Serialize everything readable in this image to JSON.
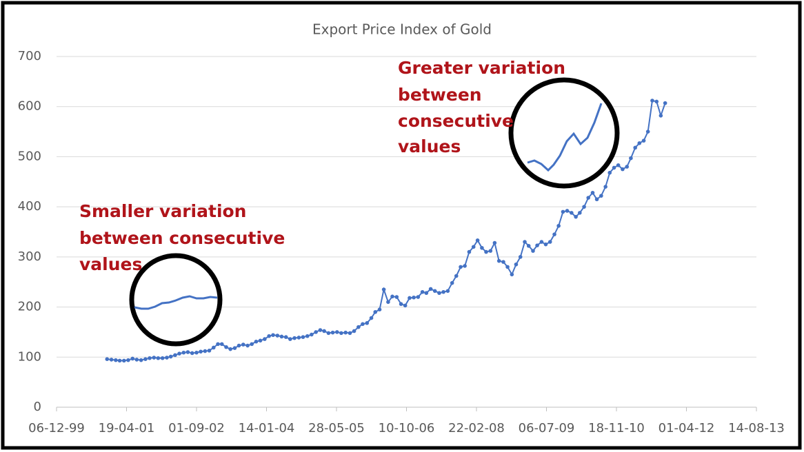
{
  "chart_data": {
    "type": "line",
    "title": "Export Price Index of Gold",
    "annotations": [
      [
        "Greater variation",
        "between",
        "consecutive",
        "values"
      ],
      [
        "Smaller variation",
        "between consecutive",
        "values"
      ]
    ],
    "x": [
      "01-12-00",
      "01-01-01",
      "01-02-01",
      "01-03-01",
      "01-04-01",
      "01-05-01",
      "01-06-01",
      "01-07-01",
      "01-08-01",
      "01-09-01",
      "01-10-01",
      "01-11-01",
      "01-12-01",
      "01-01-02",
      "01-02-02",
      "01-03-02",
      "01-04-02",
      "01-05-02",
      "01-06-02",
      "01-07-02",
      "01-08-02",
      "01-09-02",
      "01-10-02",
      "01-11-02",
      "01-12-02",
      "01-01-03",
      "01-02-03",
      "01-03-03",
      "01-04-03",
      "01-05-03",
      "01-06-03",
      "01-07-03",
      "01-08-03",
      "01-09-03",
      "01-10-03",
      "01-11-03",
      "01-12-03",
      "01-01-04",
      "01-02-04",
      "01-03-04",
      "01-04-04",
      "01-05-04",
      "01-06-04",
      "01-07-04",
      "01-08-04",
      "01-09-04",
      "01-10-04",
      "01-11-04",
      "01-12-04",
      "01-01-05",
      "01-02-05",
      "01-03-05",
      "01-04-05",
      "01-05-05",
      "01-06-05",
      "01-07-05",
      "01-08-05",
      "01-09-05",
      "01-10-05",
      "01-11-05",
      "01-12-05",
      "01-01-06",
      "01-02-06",
      "01-03-06",
      "01-04-06",
      "01-05-06",
      "01-06-06",
      "01-07-06",
      "01-08-06",
      "01-09-06",
      "01-10-06",
      "01-11-06",
      "01-12-06",
      "01-01-07",
      "01-02-07",
      "01-03-07",
      "01-04-07",
      "01-05-07",
      "01-06-07",
      "01-07-07",
      "01-08-07",
      "01-09-07",
      "01-10-07",
      "01-11-07",
      "01-12-07",
      "01-01-08",
      "01-02-08",
      "01-03-08",
      "01-04-08",
      "01-05-08",
      "01-06-08",
      "01-07-08",
      "01-08-08",
      "01-09-08",
      "01-10-08",
      "01-11-08",
      "01-12-08",
      "01-01-09",
      "01-02-09",
      "01-03-09",
      "01-04-09",
      "01-05-09",
      "01-06-09",
      "01-07-09",
      "01-08-09",
      "01-09-09",
      "01-10-09",
      "01-11-09",
      "01-12-09",
      "01-01-10",
      "01-02-10",
      "01-03-10",
      "01-04-10",
      "01-05-10",
      "01-06-10",
      "01-07-10",
      "01-08-10",
      "01-09-10",
      "01-10-10",
      "01-11-10",
      "01-12-10",
      "01-01-11",
      "01-02-11",
      "01-03-11",
      "01-04-11",
      "01-05-11",
      "01-06-11",
      "01-07-11",
      "01-08-11",
      "01-09-11",
      "01-10-11",
      "01-11-11"
    ],
    "series": [
      {
        "color": "#4472c4",
        "values": [
          96,
          95,
          94,
          93,
          93,
          94,
          97,
          95,
          94,
          96,
          98,
          99,
          98,
          98,
          99,
          101,
          104,
          107,
          109,
          110,
          108,
          109,
          111,
          112,
          113,
          119,
          126,
          126,
          120,
          116,
          118,
          123,
          125,
          123,
          126,
          131,
          133,
          136,
          142,
          144,
          143,
          141,
          140,
          136,
          138,
          139,
          140,
          142,
          145,
          150,
          154,
          152,
          148,
          149,
          150,
          148,
          149,
          148,
          152,
          160,
          166,
          168,
          178,
          190,
          195,
          235,
          210,
          221,
          220,
          206,
          203,
          218,
          219,
          220,
          230,
          228,
          236,
          232,
          228,
          230,
          232,
          248,
          262,
          280,
          282,
          310,
          320,
          333,
          318,
          310,
          312,
          328,
          292,
          290,
          280,
          265,
          285,
          300,
          330,
          322,
          312,
          323,
          330,
          325,
          330,
          345,
          362,
          390,
          392,
          388,
          380,
          388,
          400,
          418,
          428,
          415,
          422,
          440,
          468,
          478,
          483,
          475,
          480,
          497,
          518,
          527,
          532,
          550,
          612,
          610,
          582,
          607
        ]
      }
    ],
    "xlim": [
      "06-12-99",
      "14-08-13"
    ],
    "xticks": [
      "06-12-99",
      "19-04-01",
      "01-09-02",
      "14-01-04",
      "28-05-05",
      "10-10-06",
      "22-02-08",
      "06-07-09",
      "18-11-10",
      "01-04-12",
      "14-08-13"
    ],
    "ylim": [
      0,
      700
    ],
    "yticks": [
      0,
      100,
      200,
      300,
      400,
      500,
      600,
      700
    ],
    "grid": true
  }
}
